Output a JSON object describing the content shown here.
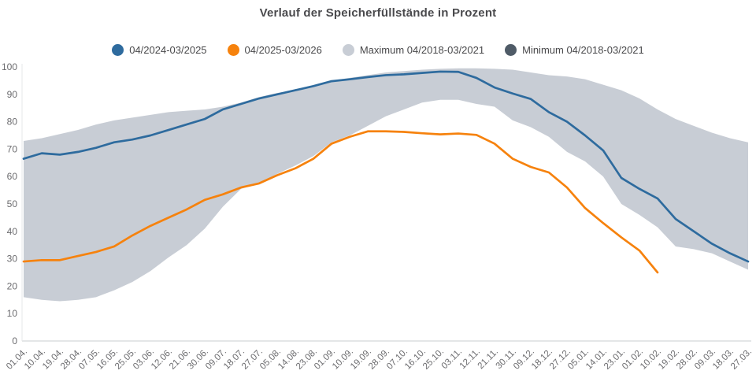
{
  "title": "Verlauf der Speicherfüllstände in Prozent",
  "legend": [
    {
      "label": "04/2024-03/2025",
      "color": "#2e6b9e"
    },
    {
      "label": "04/2025-03/2026",
      "color": "#f6820d"
    },
    {
      "label": "Maximum 04/2018-03/2021",
      "color": "#c8cdd5"
    },
    {
      "label": "Minimum 04/2018-03/2021",
      "color": "#4f5b67"
    }
  ],
  "chart_data": {
    "type": "line",
    "title": "Verlauf der Speicherfüllstände in Prozent",
    "xlabel": "",
    "ylabel": "",
    "ylim": [
      0,
      100
    ],
    "yticks": [
      0,
      10,
      20,
      30,
      40,
      50,
      60,
      70,
      80,
      90,
      100
    ],
    "grid": false,
    "legend_position": "top",
    "x_tick_rotation": -45,
    "band_fill_color": "#c8cdd5",
    "axis_line_color": "#dcdddf",
    "tick_label_color": "#6b6b6e",
    "categories": [
      "01.04.",
      "10.04.",
      "19.04.",
      "28.04.",
      "07.05.",
      "16.05.",
      "25.05.",
      "03.06.",
      "12.06.",
      "21.06.",
      "30.06.",
      "09.07.",
      "18.07.",
      "27.07.",
      "05.08.",
      "14.08.",
      "23.08.",
      "01.09.",
      "10.09.",
      "19.09.",
      "28.09.",
      "07.10.",
      "16.10.",
      "25.10.",
      "03.11.",
      "12.11.",
      "21.11.",
      "30.11.",
      "09.12.",
      "18.12.",
      "27.12.",
      "05.01.",
      "14.01.",
      "23.01.",
      "01.02.",
      "10.02.",
      "19.02.",
      "28.02.",
      "09.03.",
      "18.03.",
      "27.03."
    ],
    "series": [
      {
        "name": "Maximum 04/2018-03/2021",
        "role": "band-upper",
        "color": "#c8cdd5",
        "values": [
          73,
          74,
          75.5,
          77,
          79,
          80.5,
          81.5,
          82.5,
          83.5,
          84,
          84.5,
          85.5,
          87,
          89,
          90.5,
          91.5,
          93,
          95,
          96,
          97,
          98,
          98.5,
          99,
          99.3,
          99.5,
          99.5,
          99.3,
          99,
          98,
          97,
          96.5,
          95.5,
          93.5,
          91.5,
          88.5,
          84.5,
          81,
          78.5,
          76,
          74,
          72.5
        ]
      },
      {
        "name": "Minimum 04/2018-03/2021",
        "role": "band-lower",
        "color": "#4f5b67",
        "values": [
          16,
          15,
          14.5,
          15,
          16,
          18.5,
          21.5,
          25.5,
          30.5,
          35,
          41,
          49,
          55.5,
          57.5,
          61,
          64,
          67.5,
          72.5,
          75,
          78.5,
          82,
          84.5,
          87,
          88,
          88,
          86.5,
          85.5,
          80.5,
          78,
          74.5,
          69,
          65.5,
          60,
          50,
          46,
          41.5,
          34.5,
          33.5,
          32,
          29,
          26
        ]
      },
      {
        "name": "04/2024-03/2025",
        "role": "line",
        "color": "#2e6b9e",
        "values": [
          66.5,
          68.5,
          68,
          69,
          70.5,
          72.5,
          73.5,
          75,
          77,
          79,
          81,
          84.5,
          86.5,
          88.5,
          90,
          91.5,
          93,
          94.8,
          95.5,
          96.3,
          97,
          97.3,
          97.8,
          98.3,
          98.2,
          96,
          92.5,
          90.3,
          88.3,
          83.5,
          80,
          75,
          69.5,
          59.5,
          55.5,
          52,
          44.5,
          40,
          35.5,
          32,
          29
        ]
      },
      {
        "name": "04/2025-03/2026",
        "role": "line",
        "color": "#f6820d",
        "values": [
          29,
          29.5,
          29.5,
          31,
          32.5,
          34.5,
          38.5,
          42,
          45,
          48,
          51.5,
          53.5,
          56,
          57.5,
          60.5,
          63,
          66.5,
          72,
          74.5,
          76.5,
          76.5,
          76.3,
          75.8,
          75.4,
          75.7,
          75.2,
          72,
          66.5,
          63.5,
          61.5,
          56,
          48.5,
          43,
          37.8,
          33,
          25,
          null,
          null,
          null,
          null,
          null
        ]
      }
    ]
  }
}
